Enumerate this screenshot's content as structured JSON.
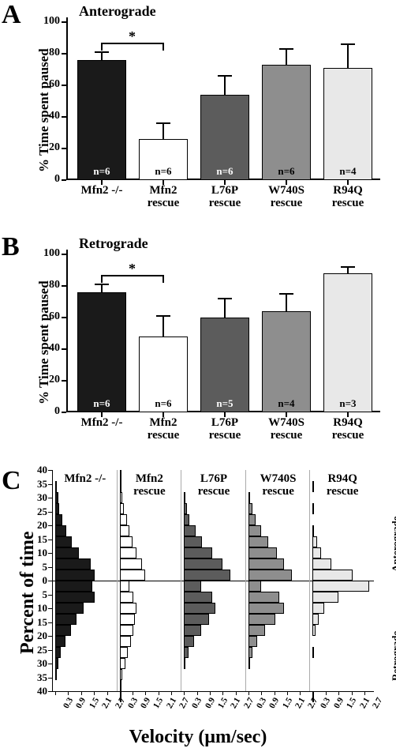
{
  "letters": {
    "A": "A",
    "B": "B",
    "C": "C"
  },
  "titles": {
    "A": "Anterograde",
    "B": "Retrograde"
  },
  "ylabAB": "% Time spent paused",
  "ylabC": "Percent of time",
  "xlabC": "Velocity (μm/sec)",
  "rightAnt": "Anterograde",
  "rightRet": "Retrograde",
  "groups": [
    "Mfn2 -/-",
    "Mfn2",
    "L76P",
    "W740S",
    "R94Q"
  ],
  "rescue": "rescue",
  "sig": "*",
  "A": {
    "ylim": [
      0,
      100
    ],
    "ticks": [
      0,
      20,
      40,
      60,
      80,
      100
    ],
    "bars": [
      {
        "v": 76,
        "err": 5,
        "fill": "#1a1a1a",
        "n": "n=6",
        "ncol": "white"
      },
      {
        "v": 26,
        "err": 10,
        "fill": "#ffffff",
        "n": "n=6",
        "ncol": "dark"
      },
      {
        "v": 54,
        "err": 12,
        "fill": "#5c5c5c",
        "n": "n=6",
        "ncol": "white"
      },
      {
        "v": 73,
        "err": 10,
        "fill": "#8e8e8e",
        "n": "n=6",
        "ncol": "dark"
      },
      {
        "v": 71,
        "err": 15,
        "fill": "#e8e8e8",
        "n": "n=4",
        "ncol": "dark"
      }
    ]
  },
  "B": {
    "ylim": [
      0,
      100
    ],
    "ticks": [
      0,
      20,
      40,
      60,
      80,
      100
    ],
    "bars": [
      {
        "v": 76,
        "err": 5,
        "fill": "#1a1a1a",
        "n": "n=6",
        "ncol": "white"
      },
      {
        "v": 48,
        "err": 13,
        "fill": "#ffffff",
        "n": "n=6",
        "ncol": "dark"
      },
      {
        "v": 60,
        "err": 12,
        "fill": "#5c5c5c",
        "n": "n=5",
        "ncol": "white"
      },
      {
        "v": 64,
        "err": 11,
        "fill": "#8e8e8e",
        "n": "n=4",
        "ncol": "dark"
      },
      {
        "v": 88,
        "err": 4,
        "fill": "#e8e8e8",
        "n": "n=3",
        "ncol": "dark"
      }
    ]
  },
  "C": {
    "xticks": [
      "0.3",
      "0.9",
      "1.5",
      "2.1",
      "2.7"
    ],
    "yticks": [
      0,
      5,
      10,
      15,
      20,
      25,
      30,
      35,
      40
    ],
    "groups": [
      {
        "label": "Mfn2 -/-",
        "fill": "#1a1a1a",
        "ant": [
          28,
          25,
          17,
          12,
          8,
          5,
          3,
          2,
          1
        ],
        "ret": [
          26,
          28,
          20,
          15,
          11,
          7,
          4,
          2,
          1
        ]
      },
      {
        "label": "Mfn2\nrescue",
        "fill": "#ffffff",
        "ant": [
          18,
          16,
          12,
          9,
          7,
          5,
          3,
          2,
          1,
          1
        ],
        "ret": [
          7,
          10,
          12,
          11,
          10,
          8,
          6,
          4,
          2,
          1,
          1
        ]
      },
      {
        "label": "L76P\nrescue",
        "fill": "#5c5c5c",
        "ant": [
          33,
          27,
          20,
          13,
          8,
          4,
          2,
          1
        ],
        "ret": [
          12,
          20,
          22,
          18,
          12,
          7,
          3,
          1
        ]
      },
      {
        "label": "W740S\nrescue",
        "fill": "#8e8e8e",
        "ant": [
          31,
          25,
          20,
          14,
          9,
          5,
          3,
          1
        ],
        "ret": [
          9,
          22,
          25,
          19,
          12,
          6,
          3,
          1
        ]
      },
      {
        "label": "R94Q\nrescue",
        "fill": "#e8e8e8",
        "ant": [
          28,
          13,
          6,
          3,
          1,
          0,
          1,
          0,
          1
        ],
        "ret": [
          40,
          18,
          8,
          4,
          2,
          0,
          1,
          0,
          0,
          0,
          1
        ]
      }
    ]
  }
}
